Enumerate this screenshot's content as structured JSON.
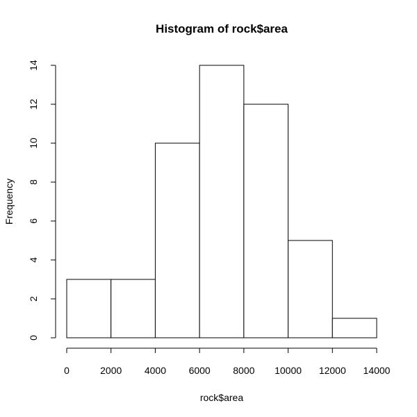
{
  "chart_data": {
    "type": "bar",
    "title": "Histogram of rock$area",
    "xlabel": "rock$area",
    "ylabel": "Frequency",
    "bin_edges": [
      0,
      2000,
      4000,
      6000,
      8000,
      10000,
      12000,
      14000
    ],
    "values": [
      3,
      3,
      10,
      14,
      12,
      5,
      1
    ],
    "xlim": [
      0,
      14000
    ],
    "ylim": [
      0,
      14
    ],
    "x_ticks": [
      0,
      2000,
      4000,
      6000,
      8000,
      10000,
      12000,
      14000
    ],
    "y_ticks": [
      0,
      2,
      4,
      6,
      8,
      10,
      12,
      14
    ],
    "grid": false,
    "colors": {
      "bar_fill": "#ffffff",
      "bar_stroke": "#000000"
    }
  }
}
